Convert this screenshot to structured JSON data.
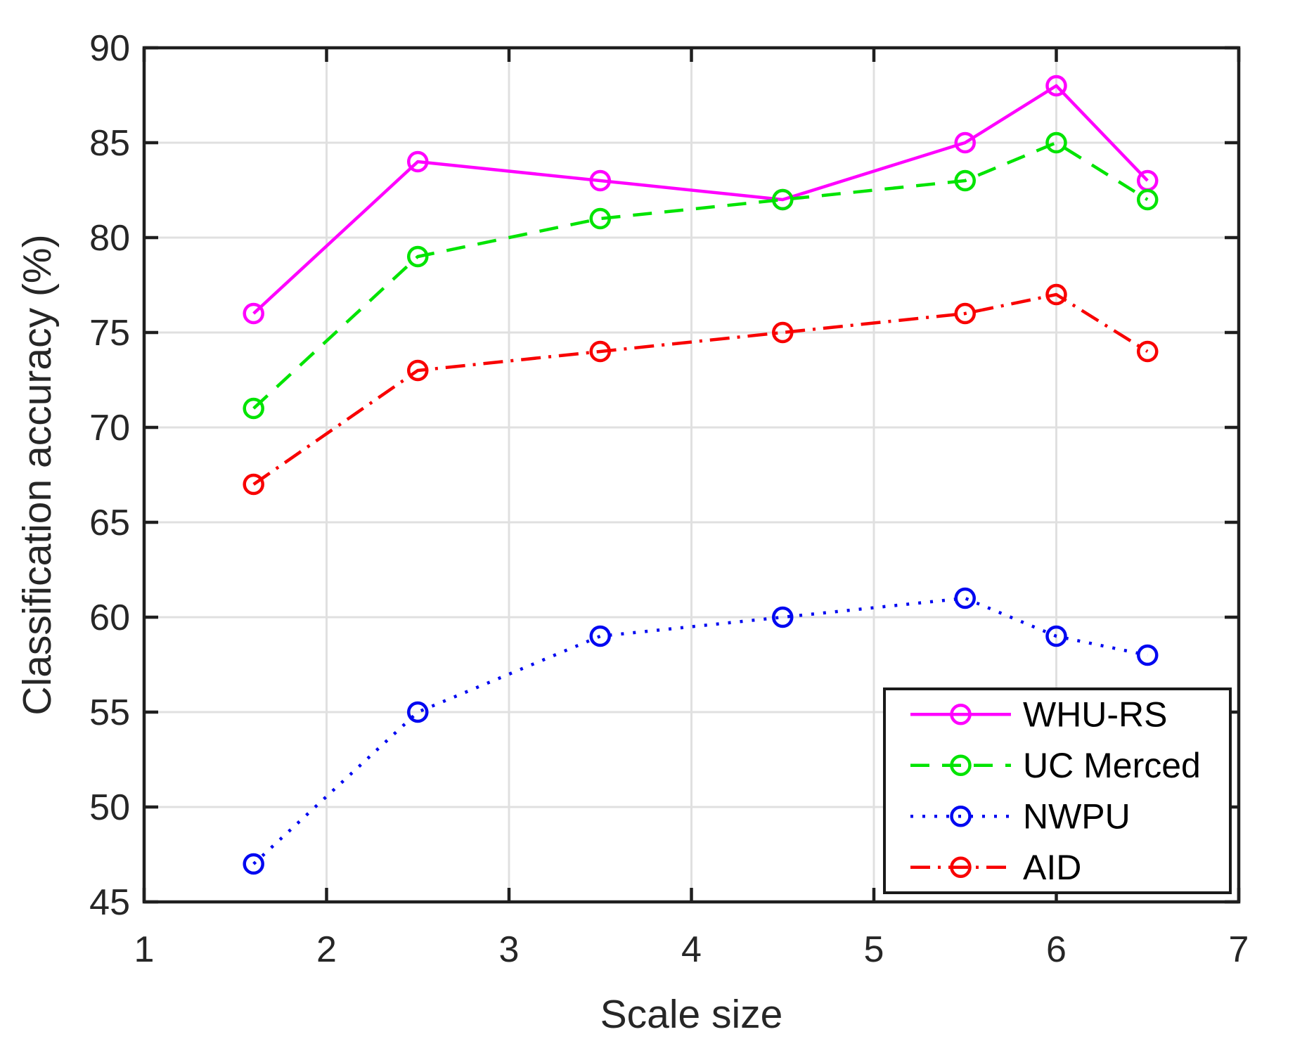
{
  "figure": {
    "background": "#ffffff"
  },
  "chart_data": {
    "type": "line",
    "title": "",
    "xlabel": "Scale size",
    "ylabel": "Classification accuracy (%)",
    "xlim": [
      1,
      7
    ],
    "ylim": [
      45,
      90
    ],
    "xticks": [
      1,
      2,
      3,
      4,
      5,
      6,
      7
    ],
    "yticks": [
      45,
      50,
      55,
      60,
      65,
      70,
      75,
      80,
      85,
      90
    ],
    "grid": true,
    "legend_position": "southeast",
    "x": [
      1.6,
      2.5,
      3.5,
      4.5,
      5.5,
      6,
      6.5
    ],
    "series": [
      {
        "name": "WHU-RS",
        "color": "#ff00ff",
        "line_style": "solid",
        "marker": "circle",
        "values": [
          76,
          84,
          83,
          82,
          85,
          88,
          83
        ]
      },
      {
        "name": "UC Merced",
        "color": "#00e400",
        "line_style": "dashed",
        "marker": "circle",
        "values": [
          71,
          79,
          81,
          82,
          83,
          85,
          82
        ]
      },
      {
        "name": "NWPU",
        "color": "#0008f0",
        "line_style": "dotted",
        "marker": "circle",
        "values": [
          47,
          55,
          59,
          60,
          61,
          59,
          58
        ]
      },
      {
        "name": "AID",
        "color": "#f80000",
        "line_style": "dash-dot",
        "marker": "circle",
        "values": [
          67,
          73,
          74,
          75,
          76,
          77,
          74
        ]
      }
    ]
  },
  "colors": {
    "axis_line": "#1f1f1f",
    "tick_text": "#262626",
    "grid_line": "#e0e0e0",
    "legend_border": "#1a1a1a",
    "legend_background": "#ffffff"
  }
}
